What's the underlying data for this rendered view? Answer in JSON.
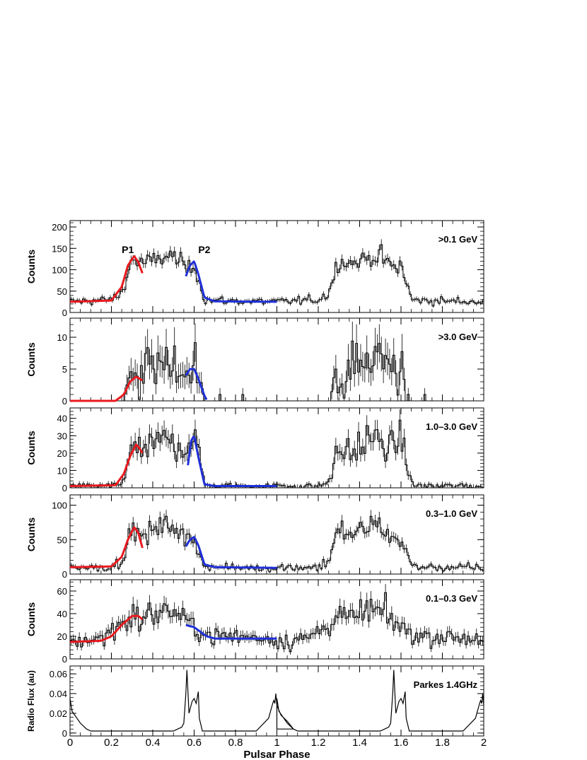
{
  "chart_data": [
    {
      "type": "histogram",
      "panel_label": ">0.1 GeV",
      "ylabel": "Counts",
      "ylim": [
        0,
        215
      ],
      "yticks": [
        0,
        50,
        100,
        150,
        200
      ],
      "bins": 200,
      "annotations": [
        "P1",
        "P2"
      ],
      "features": {
        "x": [
          0.0,
          0.2,
          0.25,
          0.3,
          0.35,
          0.4,
          0.45,
          0.5,
          0.55,
          0.58,
          0.6,
          0.65,
          0.7,
          1.0
        ],
        "y": [
          25,
          30,
          45,
          125,
          115,
          120,
          130,
          132,
          110,
          100,
          115,
          30,
          28,
          25
        ]
      },
      "fit_p1": {
        "x": [
          0.0,
          0.2,
          0.25,
          0.28,
          0.31,
          0.33,
          0.35
        ],
        "y": [
          25,
          28,
          60,
          110,
          132,
          118,
          92
        ]
      },
      "fit_p2": {
        "x": [
          0.56,
          0.58,
          0.6,
          0.62,
          0.65,
          0.7,
          1.0
        ],
        "y": [
          85,
          110,
          120,
          90,
          35,
          26,
          25
        ]
      }
    },
    {
      "type": "histogram",
      "panel_label": ">3.0 GeV",
      "ylabel": "Counts",
      "ylim": [
        0,
        13
      ],
      "yticks": [
        0,
        5,
        10
      ],
      "bins": 200,
      "features": {
        "x": [
          0.0,
          0.2,
          0.25,
          0.3,
          0.35,
          0.4,
          0.47,
          0.5,
          0.55,
          0.6,
          0.65,
          0.7,
          1.0
        ],
        "y": [
          0,
          0,
          0.2,
          3,
          4,
          6,
          7,
          6,
          5,
          5,
          0.5,
          0.1,
          0
        ]
      },
      "fit_p1": {
        "x": [
          0.0,
          0.22,
          0.26,
          0.29,
          0.32,
          0.35
        ],
        "y": [
          0,
          0,
          1,
          3,
          3.8,
          3.2
        ]
      },
      "fit_p2": {
        "x": [
          0.56,
          0.58,
          0.6,
          0.62,
          0.65,
          0.66
        ],
        "y": [
          4,
          5,
          5,
          3.5,
          0.8,
          0.2
        ]
      }
    },
    {
      "type": "histogram",
      "panel_label": "1.0–3.0 GeV",
      "ylabel": "Counts",
      "ylim": [
        0,
        46
      ],
      "yticks": [
        0,
        10,
        20,
        30,
        40
      ],
      "bins": 200,
      "features": {
        "x": [
          0.0,
          0.2,
          0.25,
          0.3,
          0.35,
          0.4,
          0.45,
          0.5,
          0.55,
          0.6,
          0.62,
          0.65,
          0.7,
          1.0
        ],
        "y": [
          1,
          1,
          3,
          22,
          20,
          24,
          28,
          27,
          22,
          30,
          20,
          2,
          1,
          1
        ]
      },
      "fit_p1": {
        "x": [
          0.0,
          0.22,
          0.26,
          0.29,
          0.32,
          0.34,
          0.35
        ],
        "y": [
          1,
          1.5,
          8,
          18,
          25,
          22,
          20
        ]
      },
      "fit_p2": {
        "x": [
          0.57,
          0.585,
          0.6,
          0.62,
          0.65,
          0.7,
          1.0
        ],
        "y": [
          13,
          27,
          30,
          18,
          2,
          1,
          1
        ]
      }
    },
    {
      "type": "histogram",
      "panel_label": "0.3–1.0 GeV",
      "ylabel": "Counts",
      "ylim": [
        0,
        115
      ],
      "yticks": [
        0,
        50,
        100
      ],
      "bins": 200,
      "features": {
        "x": [
          0.0,
          0.2,
          0.25,
          0.3,
          0.35,
          0.4,
          0.45,
          0.5,
          0.55,
          0.6,
          0.65,
          0.7,
          1.0
        ],
        "y": [
          10,
          10,
          20,
          65,
          55,
          62,
          70,
          72,
          50,
          52,
          12,
          10,
          9
        ]
      },
      "fit_p1": {
        "x": [
          0.0,
          0.2,
          0.25,
          0.28,
          0.31,
          0.33,
          0.35
        ],
        "y": [
          10,
          11,
          25,
          50,
          68,
          60,
          38
        ]
      },
      "fit_p2": {
        "x": [
          0.56,
          0.58,
          0.6,
          0.62,
          0.65,
          0.7,
          1.0
        ],
        "y": [
          40,
          50,
          54,
          42,
          14,
          10,
          9
        ]
      }
    },
    {
      "type": "histogram",
      "panel_label": "0.1–0.3 GeV",
      "ylabel": "Counts",
      "ylim": [
        0,
        70
      ],
      "yticks": [
        0,
        20,
        40,
        60
      ],
      "bins": 200,
      "features": {
        "x": [
          0.0,
          0.15,
          0.2,
          0.3,
          0.35,
          0.4,
          0.45,
          0.5,
          0.55,
          0.6,
          0.65,
          0.7,
          0.8,
          1.0
        ],
        "y": [
          15,
          18,
          25,
          38,
          35,
          40,
          43,
          42,
          35,
          28,
          22,
          20,
          20,
          18
        ]
      },
      "fit_p1": {
        "x": [
          0.0,
          0.15,
          0.2,
          0.25,
          0.3,
          0.33,
          0.35
        ],
        "y": [
          15,
          16,
          20,
          30,
          38,
          38,
          35
        ]
      },
      "fit_p2": {
        "x": [
          0.56,
          0.6,
          0.63,
          0.66,
          0.7,
          0.8,
          1.0
        ],
        "y": [
          30,
          28,
          24,
          20,
          18,
          18,
          18
        ]
      }
    },
    {
      "type": "line",
      "panel_label": "Parkes 1.4GHz",
      "ylabel": "Radio Flux (au)",
      "ylim": [
        -0.003,
        0.068
      ],
      "yticks": [
        0,
        0.02,
        0.04,
        0.06
      ],
      "ytick_labels": [
        "0",
        "0.02",
        "0.04",
        "0.06"
      ],
      "x": [
        0.0,
        0.01,
        0.03,
        0.05,
        0.08,
        0.1,
        0.5,
        0.54,
        0.55,
        0.56,
        0.565,
        0.575,
        0.59,
        0.6,
        0.61,
        0.62,
        0.625,
        0.64,
        0.9,
        0.96,
        0.98,
        0.985,
        0.99,
        0.995,
        1.0,
        1.02,
        1.05,
        1.08
      ],
      "y": [
        0.035,
        0.022,
        0.016,
        0.01,
        0.004,
        0.002,
        0.002,
        0.006,
        0.01,
        0.04,
        0.064,
        0.02,
        0.032,
        0.035,
        0.03,
        0.042,
        0.015,
        0.002,
        0.002,
        0.015,
        0.03,
        0.033,
        0.03,
        0.04,
        0.028,
        0.018,
        0.012,
        0.004
      ]
    }
  ],
  "xaxis": {
    "label": "Pulsar Phase",
    "xlim": [
      0,
      2
    ],
    "ticks": [
      0,
      0.2,
      0.4,
      0.6,
      0.8,
      1,
      1.2,
      1.4,
      1.6,
      1.8,
      2
    ],
    "tick_labels": [
      "0",
      "0.2",
      "0.4",
      "0.6",
      "0.8",
      "1",
      "1.2",
      "1.4",
      "1.6",
      "1.8",
      "2"
    ]
  },
  "colors": {
    "data": "#000000",
    "fit_p1": "#e8191e",
    "fit_p2": "#1f2fd8",
    "frame": "#000000"
  }
}
